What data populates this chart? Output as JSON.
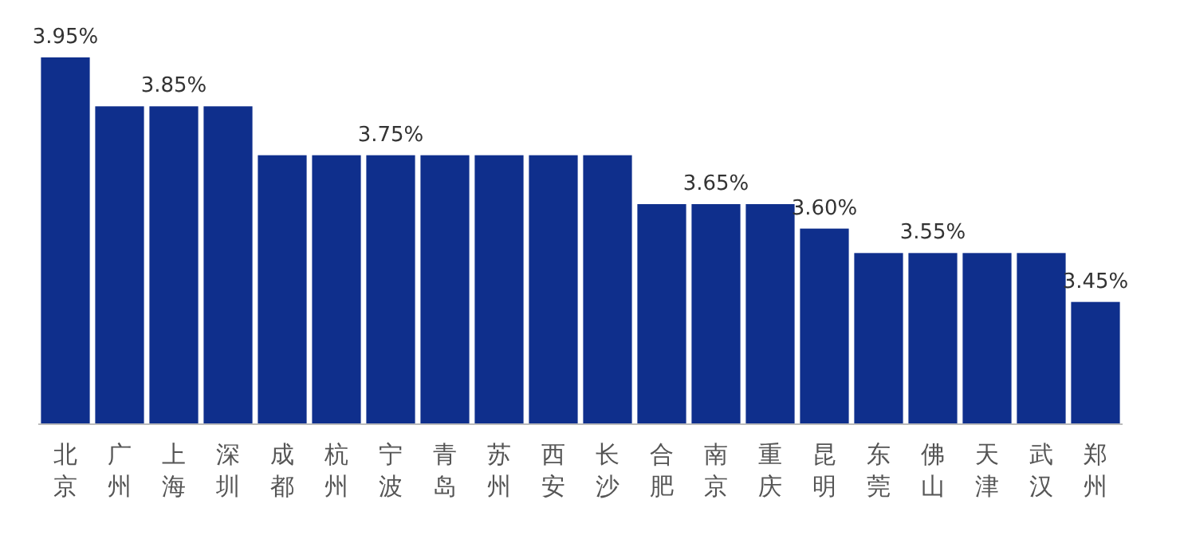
{
  "chart_data": {
    "type": "bar",
    "categories": [
      "北京",
      "广州",
      "上海",
      "深圳",
      "成都",
      "杭州",
      "宁波",
      "青岛",
      "苏州",
      "西安",
      "长沙",
      "合肥",
      "南京",
      "重庆",
      "昆明",
      "东莞",
      "佛山",
      "天津",
      "武汉",
      "郑州"
    ],
    "values": [
      3.95,
      3.85,
      3.85,
      3.85,
      3.75,
      3.75,
      3.75,
      3.75,
      3.75,
      3.75,
      3.75,
      3.65,
      3.65,
      3.65,
      3.6,
      3.55,
      3.55,
      3.55,
      3.55,
      3.45
    ],
    "value_labels": [
      "3.95%",
      null,
      "3.85%",
      null,
      null,
      null,
      "3.75%",
      null,
      null,
      null,
      null,
      null,
      "3.65%",
      null,
      "3.60%",
      null,
      "3.55%",
      null,
      null,
      "3.45%"
    ],
    "color": "#0f2f8c",
    "ylim": [
      3.2,
      3.95
    ]
  }
}
